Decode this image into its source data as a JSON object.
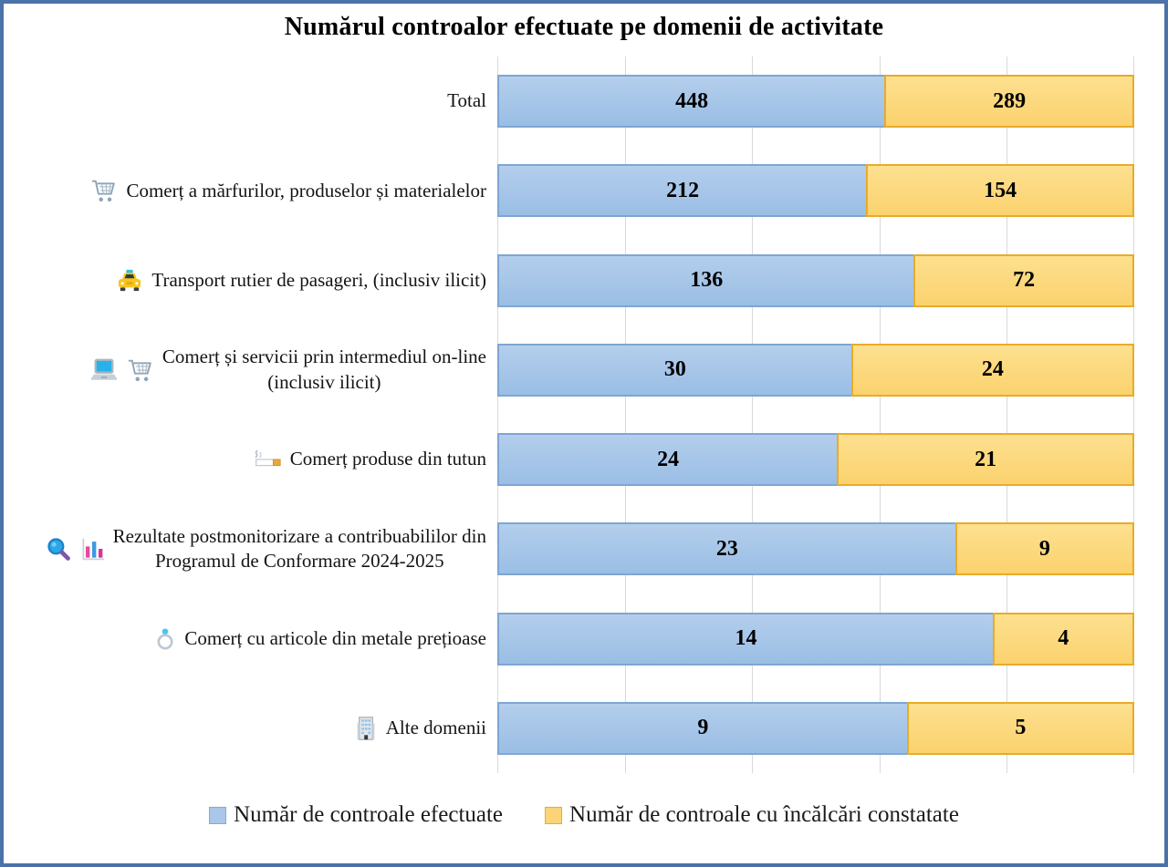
{
  "title": "Numărul controalor efectuate pe domenii de activitate",
  "colors": {
    "frame_border": "#4b72a9",
    "blue_fill": "#9fc1e7",
    "blue_border": "#7ea6d3",
    "yellow_fill": "#fcd472",
    "yellow_border": "#e9ab28",
    "gridline": "#d9d9d9"
  },
  "legend": {
    "items": [
      {
        "label": "Număr de controale efectuate",
        "swatch": "blue"
      },
      {
        "label": "Număr de controale cu încălcări constatate",
        "swatch": "yellow"
      }
    ]
  },
  "rows": [
    {
      "label": "Total",
      "icons": [],
      "efectuate": 448,
      "incalcari": 289
    },
    {
      "label": "Comerț a mărfurilor, produselor și materialelor",
      "icons": [
        "cart-icon"
      ],
      "efectuate": 212,
      "incalcari": 154
    },
    {
      "label": "Transport rutier de pasageri, (inclusiv ilicit)",
      "icons": [
        "taxi-icon"
      ],
      "efectuate": 136,
      "incalcari": 72
    },
    {
      "label": "Comerț și servicii prin intermediul on-line\n(inclusiv ilicit)",
      "icons": [
        "laptop-icon",
        "cart-icon"
      ],
      "efectuate": 30,
      "incalcari": 24
    },
    {
      "label": "Comerț produse din tutun",
      "icons": [
        "cigarette-icon"
      ],
      "efectuate": 24,
      "incalcari": 21
    },
    {
      "label": "Rezultate postmonitorizare a contribuabililor din\nProgramul de Conformare 2024-2025",
      "icons": [
        "magnifier-icon",
        "bar-chart-icon"
      ],
      "efectuate": 23,
      "incalcari": 9
    },
    {
      "label": "Comerț cu articole din metale prețioase",
      "icons": [
        "ring-icon"
      ],
      "efectuate": 14,
      "incalcari": 4
    },
    {
      "label": "Alte domenii",
      "icons": [
        "building-icon"
      ],
      "efectuate": 9,
      "incalcari": 5
    }
  ],
  "chart_data": {
    "type": "bar",
    "orientation": "horizontal",
    "stacked": true,
    "percent_stacked": true,
    "title": "Numărul controalor efectuate pe domenii de activitate",
    "categories": [
      "Total",
      "Comerț a mărfurilor, produselor și materialelor",
      "Transport rutier de pasageri, (inclusiv ilicit)",
      "Comerț și servicii prin intermediul on-line (inclusiv ilicit)",
      "Comerț produse din tutun",
      "Rezultate postmonitorizare a contribuabililor din Programul de Conformare 2024-2025",
      "Comerț cu articole din metale prețioase",
      "Alte domenii"
    ],
    "series": [
      {
        "name": "Număr de controale efectuate",
        "color": "#9fc1e7",
        "values": [
          448,
          212,
          136,
          30,
          24,
          23,
          14,
          9
        ]
      },
      {
        "name": "Număr de controale cu încălcări constatate",
        "color": "#fcd472",
        "values": [
          289,
          154,
          72,
          24,
          21,
          9,
          4,
          5
        ]
      }
    ],
    "data_labels": true,
    "legend_position": "bottom",
    "gridlines": "vertical",
    "axis": {
      "hidden": true,
      "range_percent": [
        0,
        100
      ],
      "gridline_step_percent": 20
    }
  }
}
